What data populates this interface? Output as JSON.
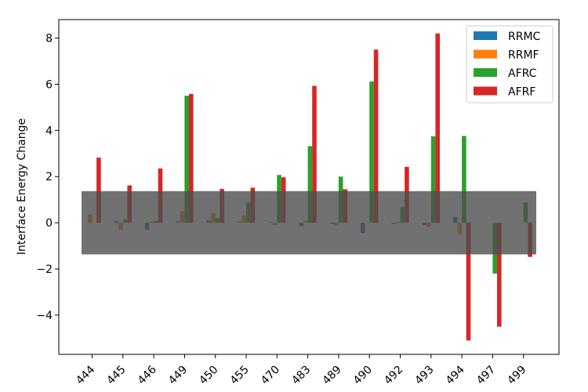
{
  "chart_data": {
    "type": "bar",
    "title": "",
    "xlabel": "",
    "ylabel": "Interface Energy Change",
    "ylim": [
      -5.7,
      8.8
    ],
    "yticks": [
      -4,
      -2,
      0,
      2,
      4,
      6,
      8
    ],
    "ytick_labels": [
      "−4",
      "−2",
      "0",
      "2",
      "4",
      "6",
      "8"
    ],
    "categories": [
      "444",
      "445",
      "446",
      "449",
      "450",
      "455",
      "470",
      "483",
      "489",
      "490",
      "492",
      "493",
      "494",
      "497",
      "499"
    ],
    "series": [
      {
        "name": "RRMC",
        "color": "#1f77b4",
        "values": [
          0.0,
          0.08,
          -0.3,
          0.05,
          0.1,
          0.05,
          0.03,
          -0.15,
          -0.05,
          -0.45,
          -0.05,
          -0.1,
          0.25,
          0.0,
          0.0
        ]
      },
      {
        "name": "RRMF",
        "color": "#ff7f0e",
        "values": [
          0.35,
          -0.3,
          0.05,
          0.5,
          0.42,
          0.32,
          -0.1,
          0.08,
          -0.12,
          0.0,
          0.05,
          -0.18,
          -0.5,
          0.0,
          0.0
        ]
      },
      {
        "name": "AFRC",
        "color": "#2ca02c",
        "values": [
          0.0,
          0.15,
          0.07,
          5.5,
          0.2,
          0.88,
          2.07,
          3.32,
          2.0,
          6.12,
          0.68,
          3.75,
          3.76,
          -2.2,
          0.88
        ]
      },
      {
        "name": "AFRF",
        "color": "#d62728",
        "values": [
          2.82,
          1.62,
          2.35,
          5.58,
          1.47,
          1.52,
          1.97,
          5.93,
          1.45,
          7.5,
          2.42,
          8.2,
          -5.1,
          -4.5,
          -1.48
        ]
      }
    ],
    "shaded_band": {
      "y_min": -1.37,
      "y_max": 1.37,
      "color": "#4d4d4d",
      "opacity": 0.8
    },
    "legend_position": "top-right",
    "grid": false
  }
}
